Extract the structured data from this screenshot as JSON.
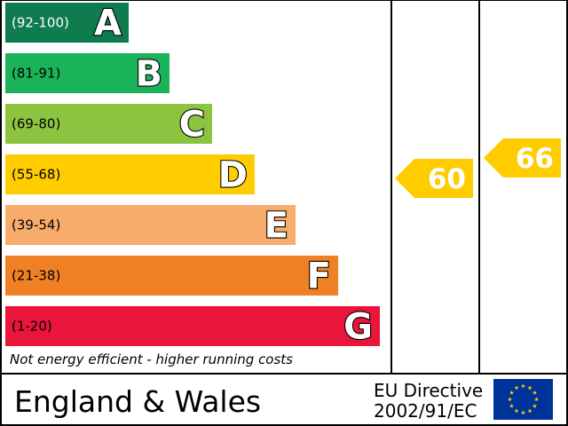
{
  "chart_data": {
    "type": "bar",
    "bands": [
      {
        "letter": "A",
        "range": "(92-100)",
        "color": "#0e7c4f"
      },
      {
        "letter": "B",
        "range": "(81-91)",
        "color": "#1bb35a"
      },
      {
        "letter": "C",
        "range": "(69-80)",
        "color": "#8cc43f"
      },
      {
        "letter": "D",
        "range": "(55-68)",
        "color": "#ffcc00"
      },
      {
        "letter": "E",
        "range": "(39-54)",
        "color": "#f7ac6b"
      },
      {
        "letter": "F",
        "range": "(21-38)",
        "color": "#ef8023"
      },
      {
        "letter": "G",
        "range": "(1-20)",
        "color": "#e9153b"
      }
    ],
    "ratings": [
      {
        "value": 60,
        "band": "D",
        "color": "#ffcc00"
      },
      {
        "value": 66,
        "band": "D",
        "color": "#ffcc00"
      }
    ],
    "footnote": "Not energy efficient - higher running costs"
  },
  "footer": {
    "region": "England & Wales",
    "directive_line1": "EU Directive",
    "directive_line2": "2002/91/EC",
    "flag_color": "#003399",
    "star_color": "#ffcc00"
  }
}
